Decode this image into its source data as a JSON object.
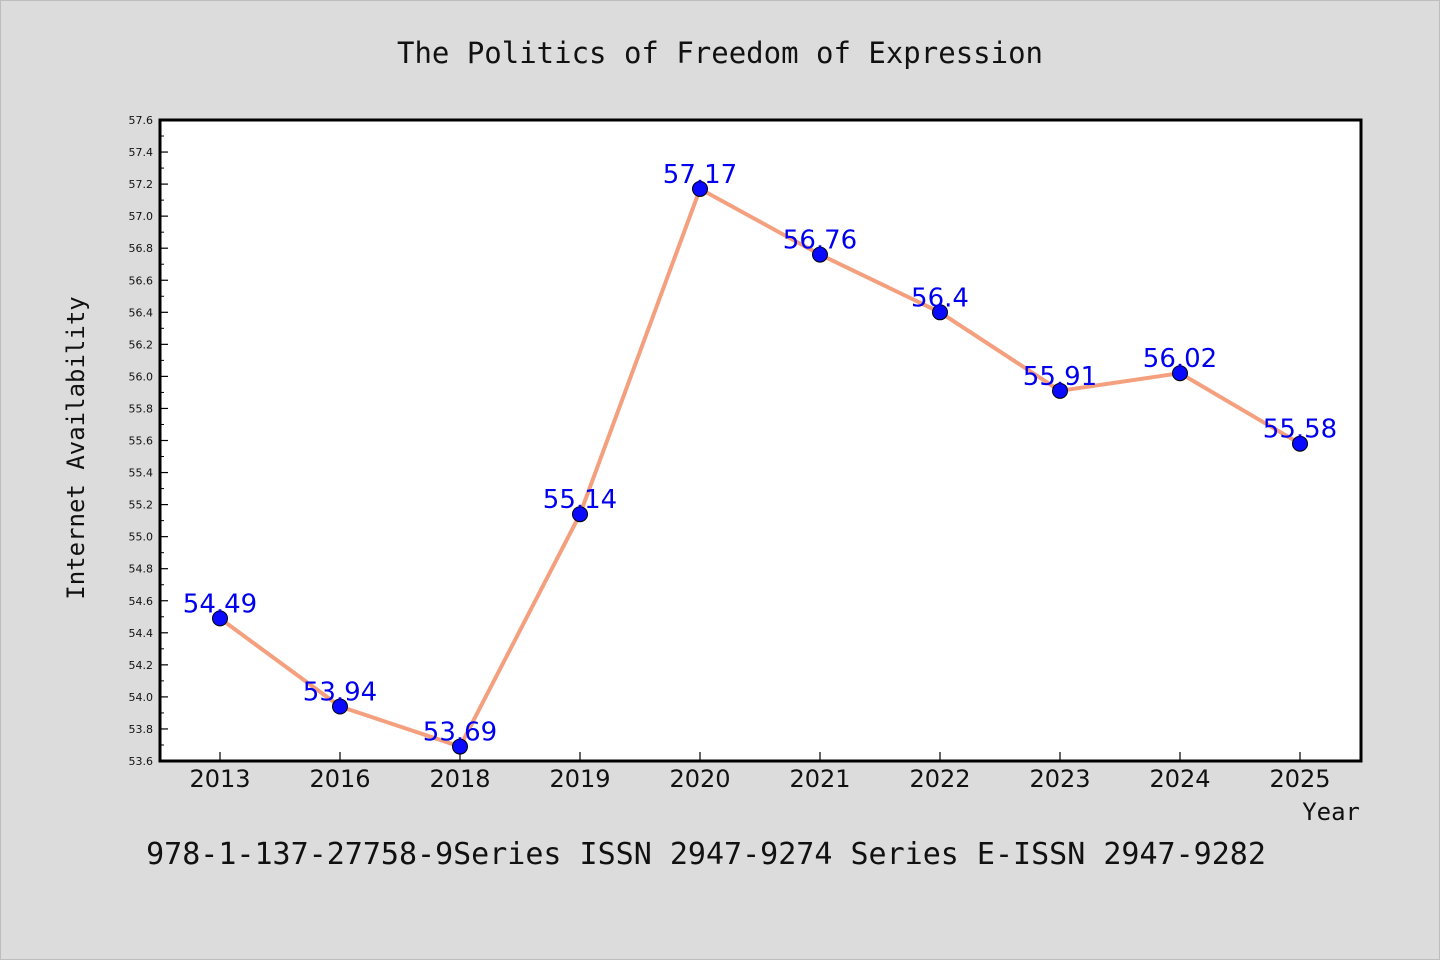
{
  "chart_data": {
    "type": "line",
    "title": "The Politics of Freedom of Expression",
    "xlabel": "Year",
    "ylabel": "Internet Availability",
    "categories": [
      "2013",
      "2016",
      "2018",
      "2019",
      "2020",
      "2021",
      "2022",
      "2023",
      "2024",
      "2025"
    ],
    "series": [
      {
        "values": [
          54.49,
          53.94,
          53.69,
          55.14,
          57.17,
          56.76,
          56.4,
          55.91,
          56.02,
          55.58
        ],
        "labels": [
          "54.49",
          "53.94",
          "53.69",
          "55.14",
          "57.17",
          "56.76",
          "56.4",
          "55.91",
          "56.02",
          "55.58"
        ],
        "line_color": "#f4a07f",
        "marker_color": "#0a0aff"
      }
    ],
    "ylim": [
      53.6,
      57.6
    ],
    "yticks": [
      "53.6",
      "53.8",
      "54.0",
      "54.2",
      "54.4",
      "54.6",
      "54.8",
      "55.0",
      "55.2",
      "55.4",
      "55.6",
      "55.8",
      "56.0",
      "56.2",
      "56.4",
      "56.6",
      "56.8",
      "57.0",
      "57.2",
      "57.4",
      "57.6"
    ],
    "grid": false,
    "label_color": "#0000ee"
  },
  "footer": "978-1-137-27758-9Series ISSN 2947-9274 Series E-ISSN 2947-9282"
}
